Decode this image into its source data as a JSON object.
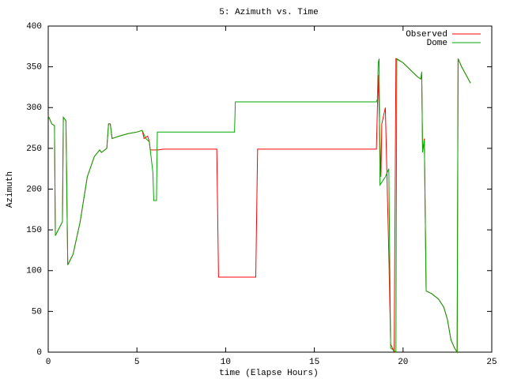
{
  "chart_data": {
    "type": "line",
    "title": "5: Azimuth vs. Time",
    "xlabel": "time (Elapse Hours)",
    "ylabel": "Azimuth",
    "xlim": [
      0,
      25
    ],
    "xticks": [
      0,
      5,
      10,
      15,
      20,
      25
    ],
    "ylim": [
      0,
      400
    ],
    "yticks": [
      0,
      50,
      100,
      150,
      200,
      250,
      300,
      350,
      400
    ],
    "legend": "top-right",
    "series": [
      {
        "name": "Observed",
        "color": "#ff0000",
        "x": [
          0,
          0.2,
          0.35,
          0.4,
          0.8,
          0.85,
          1.0,
          1.1,
          1.4,
          1.8,
          2.2,
          2.6,
          2.9,
          3.0,
          3.3,
          3.4,
          3.5,
          3.6,
          4.0,
          4.5,
          5.0,
          5.3,
          5.4,
          5.6,
          5.7,
          5.75,
          6.2,
          6.5,
          9.5,
          9.6,
          11.7,
          11.8,
          18.5,
          18.6,
          18.75,
          18.8,
          19.0,
          19.2,
          19.3,
          19.5,
          19.6,
          20.0,
          20.8,
          21.0,
          21.05,
          21.1,
          21.2,
          21.3,
          21.6,
          22.0,
          22.3,
          22.5,
          22.7,
          22.9,
          23.05,
          23.1,
          23.3,
          23.8
        ],
        "values": [
          290,
          280,
          278,
          143,
          160,
          288,
          284,
          107,
          120,
          160,
          215,
          240,
          248,
          245,
          250,
          280,
          280,
          262,
          265,
          268,
          270,
          272,
          262,
          265,
          258,
          248,
          248,
          249,
          249,
          92,
          92,
          249,
          249,
          340,
          215,
          280,
          300,
          120,
          10,
          0,
          360,
          355,
          338,
          335,
          340,
          245,
          262,
          75,
          72,
          65,
          55,
          40,
          15,
          5,
          0,
          360,
          350,
          330
        ]
      },
      {
        "name": "Dome",
        "color": "#00aa00",
        "x": [
          0,
          0.2,
          0.35,
          0.4,
          0.8,
          0.85,
          1.0,
          1.1,
          1.4,
          1.8,
          2.2,
          2.6,
          2.9,
          3.0,
          3.3,
          3.4,
          3.5,
          3.6,
          4.0,
          4.5,
          5.0,
          5.3,
          5.5,
          5.7,
          5.9,
          5.95,
          6.1,
          6.15,
          10.5,
          10.55,
          18.5,
          18.55,
          18.6,
          18.65,
          18.7,
          19.0,
          19.2,
          19.3,
          19.6,
          19.65,
          20.0,
          20.8,
          21.0,
          21.05,
          21.1,
          21.2,
          21.3,
          21.6,
          22.0,
          22.3,
          22.5,
          22.7,
          22.9,
          23.05,
          23.1,
          23.3,
          23.8
        ],
        "values": [
          290,
          280,
          278,
          143,
          160,
          288,
          284,
          107,
          120,
          160,
          215,
          240,
          248,
          245,
          250,
          280,
          280,
          262,
          265,
          268,
          270,
          272,
          262,
          258,
          220,
          186,
          186,
          270,
          270,
          307,
          307,
          310,
          355,
          360,
          205,
          215,
          225,
          5,
          0,
          360,
          355,
          338,
          335,
          344,
          245,
          260,
          75,
          72,
          65,
          55,
          40,
          15,
          5,
          0,
          360,
          350,
          330
        ]
      }
    ]
  }
}
